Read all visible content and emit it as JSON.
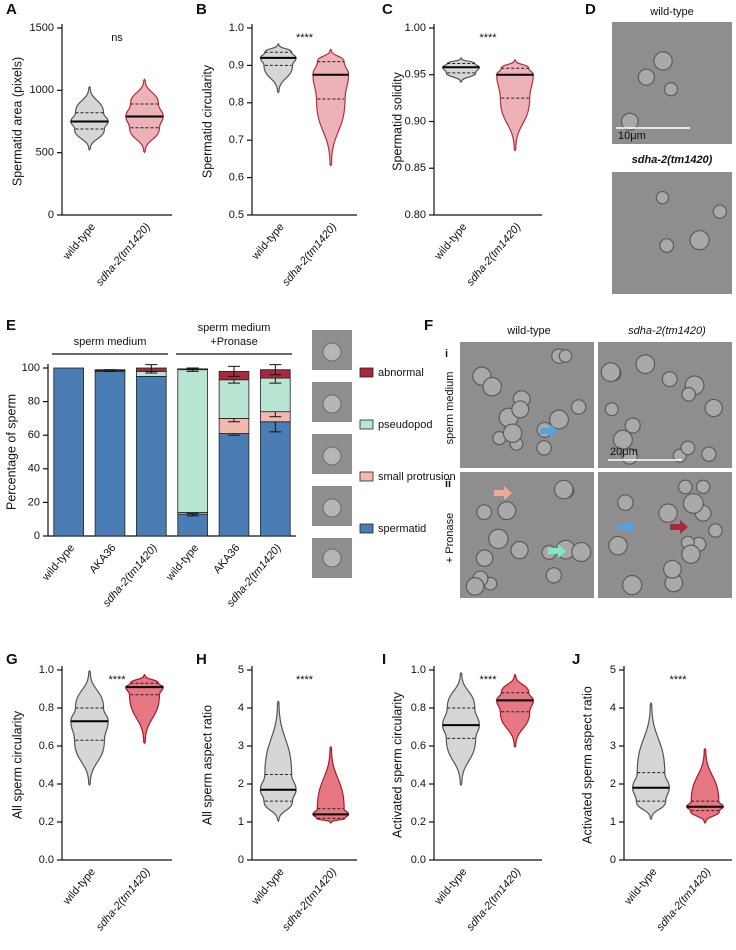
{
  "chart_data": [
    {
      "type": "violin",
      "panel": "A",
      "significance": "ns",
      "ylabel": "Spermatid area (pixels)",
      "categories": [
        "wild-type",
        "sdha-2(tm1420)"
      ],
      "min": [
        530,
        510
      ],
      "q1": [
        690,
        700
      ],
      "median": [
        750,
        790
      ],
      "q3": [
        820,
        890
      ],
      "max": [
        1020,
        1080
      ],
      "colors": [
        "#cfcfcf",
        "#eaa3ab"
      ],
      "edge_colors": [
        "#555555",
        "#b03040"
      ],
      "ylim": [
        0,
        1500
      ],
      "yticks": [
        0,
        500,
        1000,
        1500
      ]
    },
    {
      "type": "violin",
      "panel": "B",
      "significance": "****",
      "ylabel": "Spermatid circularity",
      "categories": [
        "wild-type",
        "sdha-2(tm1420)"
      ],
      "min": [
        0.83,
        0.635
      ],
      "q1": [
        0.9,
        0.81
      ],
      "median": [
        0.92,
        0.875
      ],
      "q3": [
        0.935,
        0.91
      ],
      "max": [
        0.955,
        0.94
      ],
      "colors": [
        "#cfcfcf",
        "#eaa3ab"
      ],
      "edge_colors": [
        "#555555",
        "#b03040"
      ],
      "ylim": [
        0.5,
        1.0
      ],
      "yticks": [
        0.5,
        0.6,
        0.7,
        0.8,
        0.9,
        {
          "value": 1,
          "label": "1.0"
        }
      ]
    },
    {
      "type": "violin",
      "panel": "C",
      "significance": "****",
      "ylabel": "Spermatid solidity",
      "categories": [
        "wild-type",
        "sdha-2(tm1420)"
      ],
      "min": [
        0.943,
        0.87
      ],
      "q1": [
        0.952,
        0.925
      ],
      "median": [
        0.958,
        0.95
      ],
      "q3": [
        0.962,
        0.957
      ],
      "max": [
        0.967,
        0.965
      ],
      "colors": [
        "#cfcfcf",
        "#eaa3ab"
      ],
      "edge_colors": [
        "#555555",
        "#b03040"
      ],
      "ylim": [
        0.8,
        1.0
      ],
      "yticks": [
        {
          "value": 0.8,
          "label": "0.80"
        },
        0.85,
        {
          "value": 0.9,
          "label": "0.90"
        },
        0.95,
        {
          "value": 1,
          "label": "1.00"
        }
      ]
    },
    {
      "type": "stacked_bar",
      "panel": "E",
      "ylabel": "Percentage of sperm",
      "categories": [
        "wild-type",
        "AKA36",
        "sdha-2(tm1420)",
        "wild-type",
        "AKA36",
        "sdha-2(tm1420)"
      ],
      "groups": [
        {
          "lines": [
            "sperm medium"
          ]
        },
        {
          "lines": [
            "sperm medium",
            "+Pronase"
          ]
        }
      ],
      "series": [
        {
          "name": "spermatid",
          "color": "#4a7db3",
          "values": [
            100,
            98,
            95,
            13,
            61,
            68
          ],
          "errors": [
            0,
            0,
            0,
            1,
            1,
            6
          ]
        },
        {
          "name": "small protrusion",
          "color": "#f2b9b1",
          "values": [
            0,
            0,
            0,
            1,
            9,
            6
          ],
          "errors": [
            0,
            0,
            0,
            0.5,
            2,
            3
          ]
        },
        {
          "name": "pseudopod",
          "color": "#b9e6d3",
          "values": [
            0,
            0.5,
            3,
            85,
            23,
            20
          ],
          "errors": [
            0,
            0.5,
            1,
            1,
            2,
            3
          ]
        },
        {
          "name": "abnormal",
          "color": "#a8283c",
          "values": [
            0,
            0.5,
            2,
            0.5,
            5,
            5
          ],
          "errors": [
            0,
            0,
            2,
            0.5,
            3,
            3
          ]
        }
      ],
      "ylim": [
        0,
        100
      ],
      "yticks": [
        0,
        20,
        40,
        60,
        80,
        100
      ]
    },
    {
      "type": "violin",
      "panel": "G",
      "significance": "****",
      "ylabel": "All sperm circularity",
      "categories": [
        "wild-type",
        "sdha-2(tm1420)"
      ],
      "min": [
        0.4,
        0.62
      ],
      "q1": [
        0.63,
        0.87
      ],
      "median": [
        0.73,
        0.91
      ],
      "q3": [
        0.8,
        0.93
      ],
      "max": [
        0.99,
        0.97
      ],
      "colors": [
        "#cfcfcf",
        "#e0606c"
      ],
      "edge_colors": [
        "#555555",
        "#b01828"
      ],
      "ylim": [
        0,
        1.0
      ],
      "yticks": [
        {
          "value": 0,
          "label": "0.0"
        },
        0.2,
        0.4,
        0.6,
        0.8,
        {
          "value": 1,
          "label": "1.0"
        }
      ]
    },
    {
      "type": "violin",
      "panel": "H",
      "significance": "****",
      "ylabel": "All sperm aspect ratio",
      "categories": [
        "wild-type",
        "sdha-2(tm1420)"
      ],
      "min": [
        1.05,
        1.0
      ],
      "q1": [
        1.55,
        1.1
      ],
      "median": [
        1.85,
        1.2
      ],
      "q3": [
        2.25,
        1.35
      ],
      "max": [
        4.15,
        2.95
      ],
      "colors": [
        "#cfcfcf",
        "#e0606c"
      ],
      "edge_colors": [
        "#555555",
        "#b01828"
      ],
      "ylim": [
        0,
        5
      ],
      "yticks": [
        0,
        1,
        2,
        3,
        4,
        5
      ]
    },
    {
      "type": "violin",
      "panel": "I",
      "significance": "****",
      "ylabel": "Activated sperm circularity",
      "categories": [
        "wild-type",
        "sdha-2(tm1420)"
      ],
      "min": [
        0.4,
        0.6
      ],
      "q1": [
        0.64,
        0.78
      ],
      "median": [
        0.71,
        0.84
      ],
      "q3": [
        0.8,
        0.88
      ],
      "max": [
        0.98,
        0.97
      ],
      "colors": [
        "#cfcfcf",
        "#e0606c"
      ],
      "edge_colors": [
        "#555555",
        "#b01828"
      ],
      "ylim": [
        0,
        1.0
      ],
      "yticks": [
        {
          "value": 0,
          "label": "0.0"
        },
        0.2,
        0.4,
        0.6,
        0.8,
        {
          "value": 1,
          "label": "1.0"
        }
      ]
    },
    {
      "type": "violin",
      "panel": "J",
      "significance": "****",
      "ylabel": "Activated sperm aspect ratio",
      "categories": [
        "wild-type",
        "sdha-2(tm1420)"
      ],
      "min": [
        1.1,
        1.0
      ],
      "q1": [
        1.55,
        1.3
      ],
      "median": [
        1.9,
        1.4
      ],
      "q3": [
        2.3,
        1.55
      ],
      "max": [
        4.1,
        2.9
      ],
      "colors": [
        "#cfcfcf",
        "#e0606c"
      ],
      "edge_colors": [
        "#555555",
        "#b01828"
      ],
      "ylim": [
        0,
        5
      ],
      "yticks": [
        0,
        1,
        2,
        3,
        4,
        5
      ]
    }
  ],
  "images": {
    "D": {
      "panel": "D",
      "titles": [
        "wild-type",
        "sdha-2(tm1420)"
      ],
      "scale": "10μm"
    },
    "F": {
      "panel": "F",
      "columns": [
        "wild-type",
        "sdha-2(tm1420)"
      ],
      "rows": [
        "i",
        "ii"
      ],
      "conditions": [
        "sperm medium",
        "+ Pronase"
      ],
      "scale": "20μm"
    }
  }
}
